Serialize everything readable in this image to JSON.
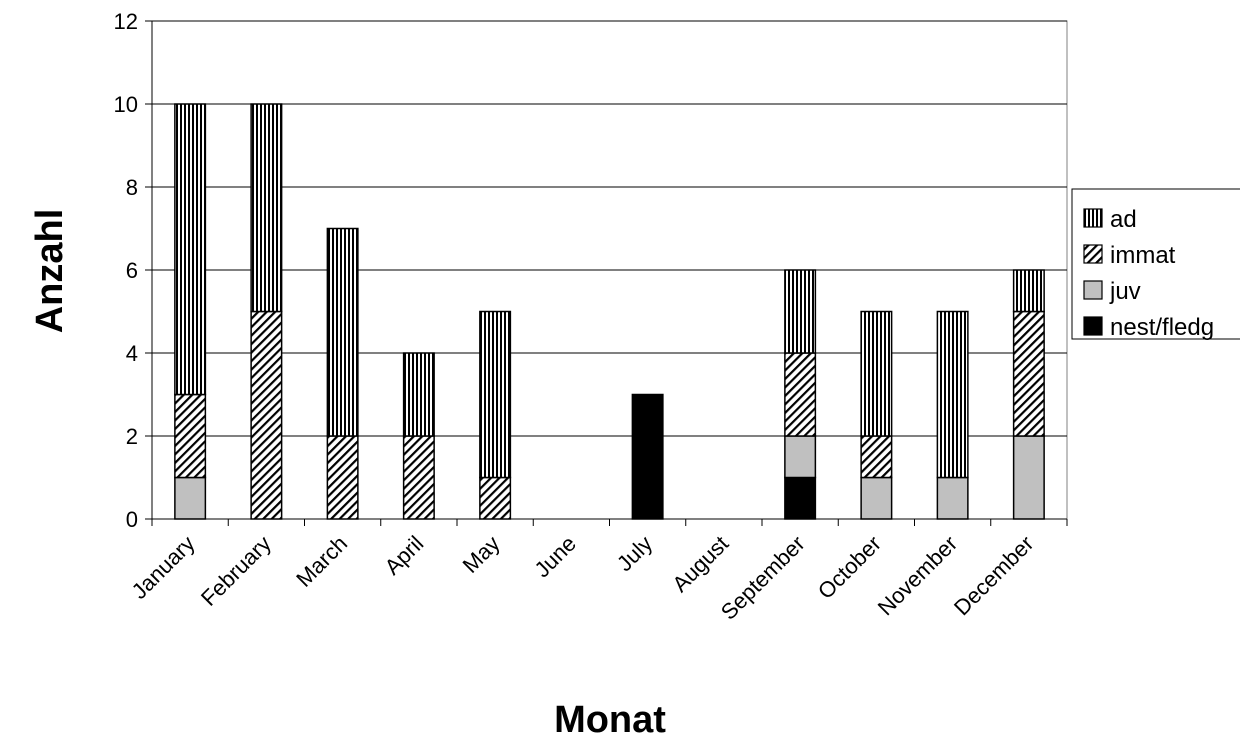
{
  "chart_data": {
    "type": "bar",
    "stacked": true,
    "categories": [
      "January",
      "February",
      "March",
      "April",
      "May",
      "June",
      "July",
      "August",
      "September",
      "October",
      "November",
      "December"
    ],
    "series": [
      {
        "name": "nest/fledg",
        "values": [
          0,
          0,
          0,
          0,
          0,
          0,
          3,
          0,
          1,
          0,
          0,
          0
        ],
        "fill": "#000000",
        "pattern": "solid"
      },
      {
        "name": "juv",
        "values": [
          1,
          0,
          0,
          0,
          0,
          0,
          0,
          0,
          1,
          1,
          1,
          2
        ],
        "fill": "#c0c0c0",
        "pattern": "solid"
      },
      {
        "name": "immat",
        "values": [
          2,
          5,
          2,
          2,
          1,
          0,
          0,
          0,
          2,
          1,
          0,
          3
        ],
        "fill": "#ffffff",
        "pattern": "diagonal"
      },
      {
        "name": "ad",
        "values": [
          7,
          5,
          5,
          2,
          4,
          0,
          0,
          0,
          2,
          3,
          4,
          1
        ],
        "fill": "#ffffff",
        "pattern": "vertical"
      }
    ],
    "legend_order": [
      "ad",
      "immat",
      "juv",
      "nest/fledg"
    ],
    "xlabel": "Monat",
    "ylabel": "Anzahl",
    "ylim": [
      0,
      12
    ],
    "yticks": [
      0,
      2,
      4,
      6,
      8,
      10,
      12
    ],
    "grid": true,
    "legend_position": "right"
  }
}
